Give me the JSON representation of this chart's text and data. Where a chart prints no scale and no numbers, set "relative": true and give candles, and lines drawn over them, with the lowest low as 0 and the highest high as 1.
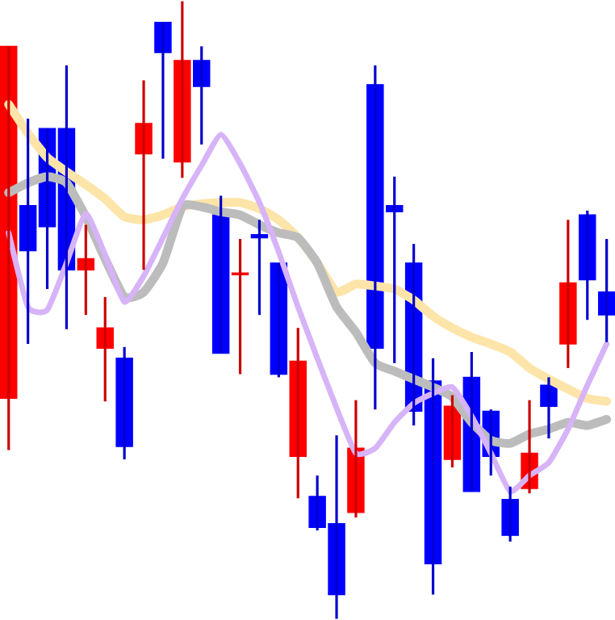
{
  "chart_data": {
    "type": "candlestick",
    "relative": true,
    "categories": [
      null,
      null,
      null,
      null,
      null,
      null,
      null,
      null,
      null,
      null,
      null,
      null,
      null,
      null,
      null,
      null,
      null,
      null,
      null,
      null,
      null,
      null,
      null,
      null,
      null,
      null,
      null,
      null,
      null,
      null,
      null,
      null
    ],
    "ohlc": [
      [
        0.357,
        0.927,
        0.273,
        0.927
      ],
      [
        0.669,
        0.81,
        0.445,
        0.596
      ],
      [
        0.794,
        0.794,
        0.534,
        0.635
      ],
      [
        0.794,
        0.896,
        0.469,
        0.565
      ],
      [
        0.565,
        0.638,
        0.492,
        0.583
      ],
      [
        0.438,
        0.521,
        0.352,
        0.471
      ],
      [
        0.422,
        0.44,
        0.258,
        0.279
      ],
      [
        0.753,
        0.872,
        0.565,
        0.802
      ],
      [
        0.966,
        0.966,
        0.745,
        0.917
      ],
      [
        0.74,
        1,
        0.714,
        0.904
      ],
      [
        0.904,
        0.927,
        0.768,
        0.862
      ],
      [
        0.654,
        0.685,
        0.43,
        0.43
      ],
      [
        0.557,
        0.615,
        0.396,
        0.56
      ],
      [
        0.622,
        0.646,
        0.492,
        0.617
      ],
      [
        0.576,
        0.576,
        0.391,
        0.396
      ],
      [
        0.263,
        0.471,
        0.195,
        0.417
      ],
      [
        0.198,
        0.232,
        0.143,
        0.148
      ],
      [
        0.154,
        0.297,
        0,
        0.039
      ],
      [
        0.172,
        0.354,
        0.164,
        0.276
      ],
      [
        0.865,
        0.896,
        0.339,
        0.438
      ],
      [
        0.669,
        0.716,
        0.414,
        0.659
      ],
      [
        0.576,
        0.607,
        0.313,
        0.336
      ],
      [
        0.385,
        0.422,
        0.039,
        0.089
      ],
      [
        0.258,
        0.362,
        0.245,
        0.344
      ],
      [
        0.391,
        0.432,
        0.206,
        0.206
      ],
      [
        0.336,
        0.339,
        0.232,
        0.263
      ],
      [
        0.193,
        0.214,
        0.125,
        0.135
      ],
      [
        0.211,
        0.354,
        0.203,
        0.268
      ],
      [
        0.378,
        0.391,
        0.292,
        0.344
      ],
      [
        0.445,
        0.646,
        0.406,
        0.544
      ],
      [
        0.654,
        0.661,
        0.484,
        0.549
      ],
      [
        0.529,
        0.615,
        0.448,
        0.492
      ]
    ],
    "colors": [
      "#ff0000",
      "#0000ff",
      "#0000ff",
      "#0000ff",
      "#ff0000",
      "#ff0000",
      "#0000ff",
      "#ff0000",
      "#0000ff",
      "#ff0000",
      "#0000ff",
      "#0000ff",
      "#ff0000",
      "#0000ff",
      "#0000ff",
      "#ff0000",
      "#0000ff",
      "#0000ff",
      "#ff0000",
      "#0000ff",
      "#0000ff",
      "#0000ff",
      "#0000ff",
      "#ff0000",
      "#0000ff",
      "#0000ff",
      "#0000ff",
      "#ff0000",
      "#0000ff",
      "#ff0000",
      "#0000ff",
      "#0000ff"
    ],
    "series": [
      {
        "type": "line",
        "color": "#fde4a8",
        "values": [
          0.833,
          0.786,
          0.747,
          0.724,
          0.703,
          0.68,
          0.651,
          0.646,
          0.654,
          0.667,
          0.672,
          0.674,
          0.674,
          0.664,
          0.646,
          0.617,
          0.576,
          0.529,
          0.542,
          0.539,
          0.534,
          0.516,
          0.49,
          0.471,
          0.456,
          0.445,
          0.432,
          0.406,
          0.388,
          0.372,
          0.357,
          0.352
        ]
      },
      {
        "type": "line",
        "color": "#bcbcbc",
        "values": [
          0.69,
          0.706,
          0.716,
          0.706,
          0.651,
          0.583,
          0.521,
          0.529,
          0.576,
          0.667,
          0.667,
          0.659,
          0.654,
          0.638,
          0.625,
          0.617,
          0.576,
          0.505,
          0.464,
          0.414,
          0.401,
          0.388,
          0.375,
          0.359,
          0.318,
          0.289,
          0.284,
          0.299,
          0.307,
          0.318,
          0.313,
          0.323
        ]
      },
      {
        "type": "line",
        "color": "#d7b3f8",
        "values": [
          0.625,
          0.505,
          0.5,
          0.576,
          0.656,
          0.589,
          0.513,
          0.555,
          0.617,
          0.68,
          0.734,
          0.784,
          0.737,
          0.674,
          0.594,
          0.505,
          0.422,
          0.341,
          0.268,
          0.276,
          0.318,
          0.349,
          0.365,
          0.375,
          0.328,
          0.268,
          0.206,
          0.232,
          0.253,
          0.307,
          0.378,
          0.445
        ]
      }
    ]
  }
}
